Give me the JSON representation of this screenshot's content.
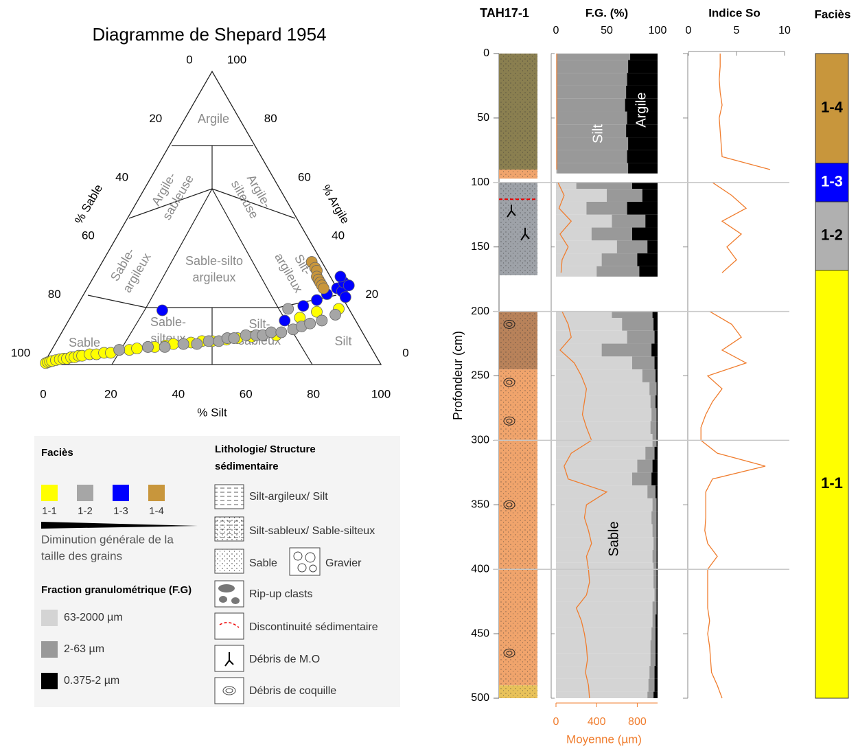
{
  "chart_data": [
    {
      "type": "ternary",
      "title": "Diagramme de Shepard 1954",
      "axis_labels": {
        "bottom": "% Silt",
        "left": "% Sable",
        "right": "% Argile"
      },
      "bottom_ticks": [
        0,
        20,
        40,
        60,
        80,
        100
      ],
      "left_ticks": [
        0,
        20,
        40,
        60,
        80,
        100
      ],
      "right_ticks": [
        0,
        20,
        40,
        60,
        80,
        100
      ],
      "regions": [
        {
          "lines": [
            "Argile"
          ]
        },
        {
          "lines": [
            "Argile-",
            "sableuse"
          ]
        },
        {
          "lines": [
            "Argile-",
            "silteuse"
          ]
        },
        {
          "lines": [
            "Sable-",
            "argileux"
          ]
        },
        {
          "lines": [
            "Sable-silto",
            "argileux"
          ]
        },
        {
          "lines": [
            "Silt-",
            "argileux"
          ]
        },
        {
          "lines": [
            "Sable"
          ]
        },
        {
          "lines": [
            "Sable-",
            "silteux"
          ]
        },
        {
          "lines": [
            "Silt-",
            "sableux"
          ]
        },
        {
          "lines": [
            "Silt"
          ]
        }
      ],
      "series": [
        {
          "name": "1-1",
          "color": "#ffff00",
          "silt": [
            0.5,
            1,
            1.5,
            2,
            3,
            4,
            5,
            6,
            7,
            8,
            9,
            10,
            12,
            14,
            16,
            18,
            20,
            23,
            25,
            28,
            30,
            33,
            35,
            38,
            40,
            43,
            46,
            50,
            53,
            57,
            60,
            64,
            68,
            72,
            78
          ],
          "clay": [
            0.5,
            0.8,
            1,
            1.2,
            1.5,
            1.8,
            2,
            2,
            2.5,
            2.5,
            3,
            3,
            3.5,
            3.5,
            4,
            4,
            5,
            5,
            5.5,
            6,
            6,
            6.5,
            7,
            7,
            7.5,
            8,
            8,
            8.5,
            9,
            9.5,
            10,
            10,
            16,
            18,
            19
          ]
        },
        {
          "name": "1-2",
          "color": "#a6a6a6",
          "silt": [
            20,
            28,
            33,
            38,
            42,
            45,
            48,
            50,
            52,
            55,
            58,
            60,
            62,
            65,
            68,
            70,
            72,
            63,
            75,
            78
          ],
          "clay": [
            5,
            6,
            6,
            7,
            7,
            8,
            8,
            9,
            9,
            10,
            10,
            10,
            11,
            11,
            12,
            13,
            14,
            19,
            15,
            17
          ]
        },
        {
          "name": "1-3",
          "color": "#0000ff",
          "silt": [
            26,
            64,
            67,
            70,
            72,
            74,
            76,
            75,
            78,
            73,
            77
          ],
          "clay": [
            18.5,
            15,
            20,
            22,
            24,
            26,
            25,
            28,
            23,
            30,
            27
          ]
        },
        {
          "name": "1-4",
          "color": "#c8963c",
          "silt": [
            62,
            64,
            65,
            66,
            67,
            68,
            69,
            70
          ],
          "clay": [
            35,
            33,
            32,
            30,
            29,
            28,
            27,
            26
          ]
        }
      ]
    },
    {
      "type": "core-log",
      "title": "TAH17-1",
      "ylabel": "Profondeur (cm)",
      "ylim": [
        0,
        500
      ],
      "yticks": [
        0,
        50,
        100,
        150,
        200,
        250,
        300,
        350,
        400,
        450,
        500
      ],
      "section_lines": [
        100,
        200,
        300,
        400
      ],
      "lithology": [
        {
          "top": 0,
          "base": 90,
          "color": "#8a7f50"
        },
        {
          "top": 90,
          "base": 97,
          "color": "#f0a46c"
        },
        {
          "top": 100,
          "base": 172,
          "color": "#9ea2a8"
        },
        {
          "top": 200,
          "base": 245,
          "color": "#b8825a"
        },
        {
          "top": 245,
          "base": 490,
          "color": "#f0a46c"
        },
        {
          "top": 490,
          "base": 500,
          "color": "#e8c25a"
        }
      ],
      "discontinuity": 113,
      "organic_debris": [
        122,
        140
      ],
      "shells": [
        210,
        255,
        285,
        350,
        465
      ],
      "depth": [
        0,
        10,
        20,
        30,
        40,
        50,
        60,
        70,
        80,
        90,
        95,
        100,
        110,
        120,
        130,
        140,
        150,
        160,
        170,
        180,
        190,
        200,
        210,
        220,
        230,
        240,
        250,
        260,
        270,
        280,
        290,
        300,
        310,
        320,
        330,
        340,
        350,
        360,
        370,
        380,
        390,
        400,
        410,
        420,
        430,
        440,
        450,
        460,
        470,
        480,
        490,
        500
      ],
      "fg": {
        "title": "F.G. (%)",
        "xlim": [
          0,
          100
        ],
        "xticks": [
          0,
          50,
          100
        ],
        "annotations": [
          "Silt",
          "Argile",
          "Sable"
        ],
        "series": [
          {
            "name": "63-2000 µm",
            "color": "#d4d4d4",
            "values": [
              1,
              1,
              1,
              1,
              1,
              1,
              1,
              1,
              1,
              1,
              null,
              20,
              50,
              30,
              55,
              35,
              60,
              45,
              40,
              null,
              null,
              55,
              65,
              70,
              45,
              75,
              85,
              92,
              93,
              94,
              93,
              95,
              88,
              80,
              75,
              90,
              95,
              94,
              95,
              96,
              95,
              96,
              96,
              97,
              95,
              95,
              94,
              93,
              93,
              92,
              91,
              90
            ]
          },
          {
            "name": "2-63 µm",
            "color": "#999999",
            "values": [
              72,
              70,
              69,
              68,
              67,
              69,
              68,
              70,
              69,
              70,
              null,
              55,
              35,
              40,
              33,
              40,
              30,
              35,
              42,
              null,
              null,
              40,
              31,
              27,
              49,
              22,
              13,
              7,
              5,
              5,
              6,
              4,
              9,
              15,
              19,
              8,
              4,
              5,
              4,
              3,
              4,
              3,
              3,
              2,
              4,
              3,
              4,
              5,
              5,
              5,
              6,
              6
            ]
          },
          {
            "name": "0.375-2 µm",
            "color": "#000000",
            "values": [
              27,
              29,
              30,
              31,
              32,
              30,
              31,
              29,
              30,
              29,
              null,
              25,
              15,
              30,
              12,
              25,
              10,
              20,
              18,
              null,
              null,
              5,
              4,
              3,
              6,
              3,
              2,
              1,
              2,
              1,
              1,
              1,
              3,
              5,
              6,
              2,
              1,
              1,
              1,
              1,
              1,
              1,
              1,
              1,
              1,
              2,
              2,
              2,
              2,
              3,
              3,
              4
            ]
          }
        ],
        "mean": {
          "label": "Moyenne (µm)",
          "color": "#f07d2e",
          "xlim": [
            0,
            1000
          ],
          "xticks": [
            0,
            400,
            800
          ],
          "values": [
            8,
            8,
            8,
            8,
            8,
            8,
            8,
            8,
            8,
            8,
            null,
            20,
            80,
            30,
            150,
            40,
            120,
            60,
            50,
            null,
            null,
            60,
            120,
            150,
            40,
            180,
            250,
            300,
            280,
            260,
            300,
            350,
            150,
            80,
            120,
            500,
            300,
            280,
            320,
            350,
            300,
            320,
            330,
            300,
            200,
            250,
            280,
            300,
            310,
            290,
            320,
            330
          ]
        }
      },
      "so": {
        "title": "Indice So",
        "xlim": [
          0,
          10
        ],
        "xticks": [
          0,
          5,
          10
        ],
        "color": "#f07d2e",
        "values": [
          3.3,
          3.3,
          3.2,
          3.3,
          3.5,
          3.2,
          3.3,
          3.4,
          3.5,
          8.5,
          null,
          2.5,
          4.5,
          6,
          3.5,
          5.5,
          4,
          5,
          3.5,
          null,
          null,
          2.2,
          4.5,
          5.5,
          3.5,
          6,
          2,
          3.5,
          2.5,
          1.8,
          1.3,
          1.3,
          3,
          8,
          2.5,
          1.8,
          1.8,
          1.8,
          1.7,
          2,
          3,
          2,
          2,
          2,
          2,
          2.2,
          2,
          2.2,
          2.3,
          2.4,
          3,
          3.5
        ]
      },
      "facies": {
        "title": "Faciès",
        "intervals": [
          {
            "label": "1-4",
            "top": 0,
            "base": 85,
            "color": "#c8963c",
            "text_color": "#000000"
          },
          {
            "label": "1-3",
            "top": 85,
            "base": 115,
            "color": "#0000ff",
            "text_color": "#ffffff"
          },
          {
            "label": "1-2",
            "top": 115,
            "base": 168,
            "color": "#b0b0b0",
            "text_color": "#000000"
          },
          {
            "label": "1-1",
            "top": 168,
            "base": 500,
            "color": "#ffff00",
            "text_color": "#000000"
          }
        ]
      }
    }
  ],
  "legend": {
    "facies_title": "Faciès",
    "trend": [
      "Diminution générale de la",
      "taille des grains"
    ],
    "fg_title": "Fraction granulométrique (F.G)",
    "litho_title": [
      "Lithologie/ Structure",
      "sédimentaire"
    ],
    "litho_items": [
      "Silt-argileux/ Silt",
      "Silt-sableux/ Sable-silteux",
      "Sable",
      "Gravier",
      "Rip-up clasts",
      "Discontinuité sédimentaire",
      "Débris de M.O",
      "Débris de coquille"
    ]
  }
}
